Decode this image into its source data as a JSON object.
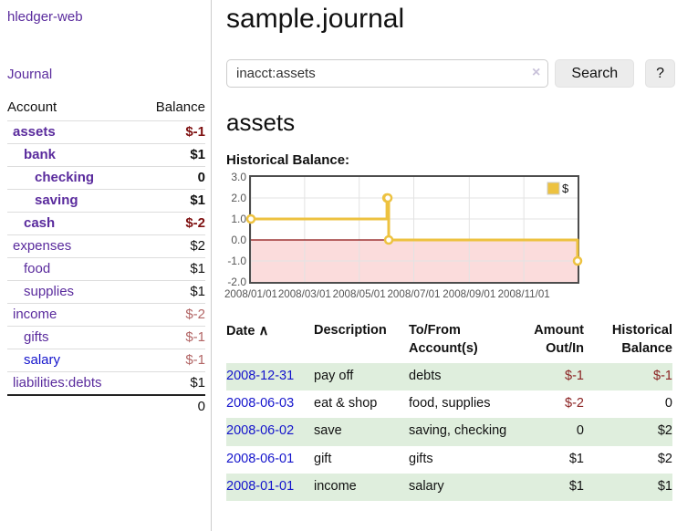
{
  "colors": {
    "link_purple": "#5a2b9d",
    "link_blue": "#1414cc",
    "negative_dark": "#7e1010",
    "negative_light": "#b26565",
    "negative_register": "#8b2323",
    "row_green": "#dfeedd",
    "chart_line_gold": "#edc240",
    "chart_negative_region": "#fbdcdc",
    "chart_zero_line": "#8b1010"
  },
  "sidebar": {
    "app_title": "hledger-web",
    "journal_link": "Journal",
    "accounts_table": {
      "col_account": "Account",
      "col_balance": "Balance",
      "rows": [
        {
          "account": "assets",
          "balance": "$-1",
          "indent": 1,
          "bold": true,
          "negative": true,
          "blue": false
        },
        {
          "account": "bank",
          "balance": "$1",
          "indent": 2,
          "bold": true,
          "negative": false,
          "blue": false
        },
        {
          "account": "checking",
          "balance": "0",
          "indent": 3,
          "bold": true,
          "negative": false,
          "blue": false
        },
        {
          "account": "saving",
          "balance": "$1",
          "indent": 3,
          "bold": true,
          "negative": false,
          "blue": false
        },
        {
          "account": "cash",
          "balance": "$-2",
          "indent": 2,
          "bold": true,
          "negative": true,
          "blue": false
        },
        {
          "account": "expenses",
          "balance": "$2",
          "indent": 1,
          "bold": false,
          "negative": false,
          "blue": false
        },
        {
          "account": "food",
          "balance": "$1",
          "indent": 2,
          "bold": false,
          "negative": false,
          "blue": false
        },
        {
          "account": "supplies",
          "balance": "$1",
          "indent": 2,
          "bold": false,
          "negative": false,
          "blue": false
        },
        {
          "account": "income",
          "balance": "$-2",
          "indent": 1,
          "bold": false,
          "negative": true,
          "blue": false
        },
        {
          "account": "gifts",
          "balance": "$-1",
          "indent": 2,
          "bold": false,
          "negative": true,
          "blue": false
        },
        {
          "account": "salary",
          "balance": "$-1",
          "indent": 2,
          "bold": false,
          "negative": true,
          "blue": true
        },
        {
          "account": "liabilities:debts",
          "balance": "$1",
          "indent": 1,
          "bold": false,
          "negative": false,
          "blue": false
        }
      ],
      "total": "0"
    }
  },
  "main": {
    "page_title": "sample.journal",
    "search": {
      "value": "inacct:assets",
      "clear_icon": "×",
      "search_button": "Search",
      "help_button": "?"
    },
    "account_heading": "assets"
  },
  "chart_data": {
    "type": "line",
    "title": "Historical Balance:",
    "steps": true,
    "legend": {
      "label": "$",
      "position": "top-right"
    },
    "series": [
      {
        "name": "$",
        "color": "#edc240",
        "points": [
          {
            "x": "2008-01-01",
            "y": 1
          },
          {
            "x": "2008-06-01",
            "y": 2
          },
          {
            "x": "2008-06-02",
            "y": 2
          },
          {
            "x": "2008-06-03",
            "y": 0
          },
          {
            "x": "2008-12-31",
            "y": -1
          }
        ]
      }
    ],
    "xlim": [
      "2008-01-01",
      "2008-12-31"
    ],
    "ylim": [
      -2,
      3
    ],
    "x_ticks": [
      {
        "label": "2008/01/01",
        "date": "2008-01-01"
      },
      {
        "label": "2008/03/01",
        "date": "2008-03-01"
      },
      {
        "label": "2008/05/01",
        "date": "2008-05-01"
      },
      {
        "label": "2008/07/01",
        "date": "2008-07-01"
      },
      {
        "label": "2008/09/01",
        "date": "2008-09-01"
      },
      {
        "label": "2008/11/01",
        "date": "2008-11-01"
      }
    ],
    "y_ticks": [
      {
        "label": "3.0",
        "value": 3
      },
      {
        "label": "2.0",
        "value": 2
      },
      {
        "label": "1.0",
        "value": 1
      },
      {
        "label": "0.0",
        "value": 0
      },
      {
        "label": "-1.0",
        "value": -1
      },
      {
        "label": "-2.0",
        "value": -2
      }
    ],
    "grid": true,
    "negative_region_below": 0
  },
  "register": {
    "headers": {
      "date": "Date",
      "sort_icon": "∧",
      "description": "Description",
      "accounts": "To/From Account(s)",
      "amount": "Amount Out/In",
      "balance": "Historical Balance"
    },
    "rows": [
      {
        "date": "2008-12-31",
        "description": "pay off",
        "accounts": "debts",
        "amount": "$-1",
        "amount_negative": true,
        "balance": "$-1",
        "balance_negative": true,
        "green": true
      },
      {
        "date": "2008-06-03",
        "description": "eat & shop",
        "accounts": "food, supplies",
        "amount": "$-2",
        "amount_negative": true,
        "balance": "0",
        "balance_negative": false,
        "green": false
      },
      {
        "date": "2008-06-02",
        "description": "save",
        "accounts": "saving, checking",
        "amount": "0",
        "amount_negative": false,
        "balance": "$2",
        "balance_negative": false,
        "green": true
      },
      {
        "date": "2008-06-01",
        "description": "gift",
        "accounts": "gifts",
        "amount": "$1",
        "amount_negative": false,
        "balance": "$2",
        "balance_negative": false,
        "green": false
      },
      {
        "date": "2008-01-01",
        "description": "income",
        "accounts": "salary",
        "amount": "$1",
        "amount_negative": false,
        "balance": "$1",
        "balance_negative": false,
        "green": true
      }
    ]
  }
}
